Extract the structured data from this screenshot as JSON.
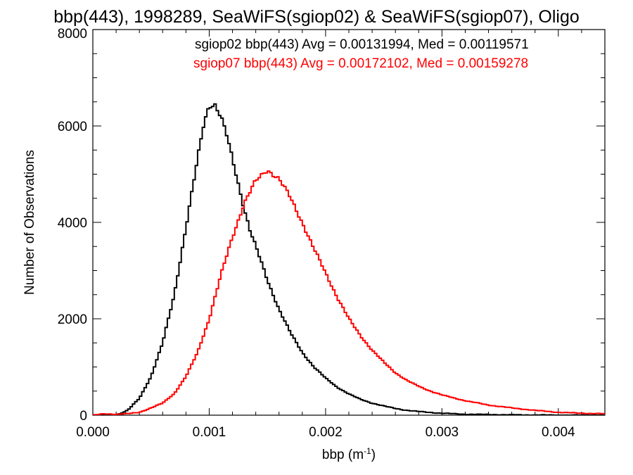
{
  "chart_data": {
    "type": "line",
    "title": "bbp(443), 1998289, SeaWiFS(sgiop02) & SeaWiFS(sgiop07), Oligo",
    "xlabel": "bbp (m",
    "xlabel_sup": "-1",
    "xlabel_tail": ")",
    "ylabel": "Number of Observations",
    "xlim": [
      0.0,
      0.0044
    ],
    "ylim": [
      0,
      8000
    ],
    "xticks": [
      0.0,
      0.001,
      0.002,
      0.003,
      0.004
    ],
    "xtick_labels": [
      "0.000",
      "0.001",
      "0.002",
      "0.003",
      "0.004"
    ],
    "yticks": [
      0,
      2000,
      4000,
      6000,
      8000
    ],
    "ytick_labels": [
      "0",
      "2000",
      "4000",
      "6000",
      "8000"
    ],
    "grid": false,
    "legend_placement": "top-right",
    "series": [
      {
        "name": "sgiop02 bbp(443) Avg = 0.00131994, Med = 0.00119571",
        "color": "#000000",
        "x": [
          0.0,
          0.0002,
          0.0003,
          0.0004,
          0.0005,
          0.0006,
          0.0007,
          0.0008,
          0.0009,
          0.00095,
          0.001,
          0.00105,
          0.0011,
          0.00115,
          0.0012,
          0.00125,
          0.0013,
          0.00135,
          0.0014,
          0.00145,
          0.0015,
          0.0016,
          0.0017,
          0.0018,
          0.0019,
          0.002,
          0.0021,
          0.0022,
          0.0023,
          0.0024,
          0.0025,
          0.0026,
          0.0027,
          0.0028,
          0.003,
          0.0032,
          0.0035,
          0.004,
          0.0044
        ],
        "y": [
          0,
          0,
          100,
          350,
          800,
          1500,
          2500,
          3900,
          5300,
          6000,
          6450,
          6450,
          6200,
          5800,
          5300,
          4800,
          4300,
          3850,
          3500,
          3150,
          2800,
          2200,
          1700,
          1300,
          1000,
          770,
          580,
          440,
          330,
          250,
          190,
          140,
          100,
          75,
          40,
          20,
          10,
          0,
          0
        ]
      },
      {
        "name": "sgiop07 bbp(443) Avg = 0.00172102, Med = 0.00159278",
        "color": "#ff0000",
        "x": [
          0.0,
          0.0001,
          0.0002,
          0.0003,
          0.0004,
          0.0005,
          0.0006,
          0.0007,
          0.0008,
          0.0009,
          0.001,
          0.0011,
          0.0012,
          0.0013,
          0.0014,
          0.0015,
          0.0016,
          0.0017,
          0.0018,
          0.0019,
          0.002,
          0.0021,
          0.0022,
          0.0023,
          0.0024,
          0.0025,
          0.0026,
          0.0027,
          0.0028,
          0.0029,
          0.003,
          0.0032,
          0.0034,
          0.0036,
          0.0038,
          0.004,
          0.0042,
          0.0044
        ],
        "y": [
          0,
          30,
          20,
          30,
          60,
          150,
          250,
          450,
          800,
          1300,
          2000,
          2900,
          3700,
          4400,
          4850,
          5100,
          4900,
          4500,
          4000,
          3450,
          2950,
          2450,
          2000,
          1650,
          1350,
          1100,
          880,
          720,
          600,
          500,
          420,
          300,
          210,
          150,
          100,
          60,
          40,
          30
        ]
      }
    ]
  }
}
